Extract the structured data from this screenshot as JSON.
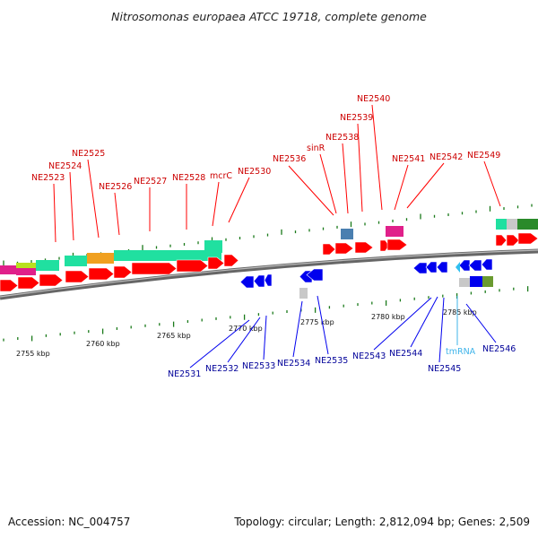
{
  "title": "Nitrosomonas europaea ATCC 19718, complete genome",
  "footer": {
    "accession": "Accession: NC_004757",
    "summary": "Topology: circular; Length: 2,812,094 bp; Genes: 2,509"
  },
  "colors": {
    "forward_gene": "#ff0000",
    "reverse_gene": "#0000ee",
    "forward_label": "#cc0000",
    "reverse_label": "#000099",
    "rna_label": "#3fb4ea",
    "backbone": "#888888",
    "tick_mark": "#1a7a1a",
    "feature_teal": "#20e0a0",
    "feature_orange": "#f0a020",
    "feature_magenta": "#e0208a",
    "feature_lime": "#b8e020",
    "feature_steel": "#4a7fb0",
    "feature_gray": "#c8c8c8",
    "feature_green": "#2a8a2a",
    "feature_olive": "#6a9a30",
    "feature_cyan": "#30c0f0"
  },
  "scale_labels": [
    "2755 kbp",
    "2760 kbp",
    "2765 kbp",
    "2770 kbp",
    "2775 kbp",
    "2780 kbp",
    "2785 kbp"
  ],
  "forward_labels": [
    "NE2523",
    "NE2524",
    "NE2525",
    "NE2526",
    "NE2527",
    "NE2528",
    "mcrC",
    "NE2530",
    "NE2536",
    "sinR",
    "NE2538",
    "NE2539",
    "NE2540",
    "NE2541",
    "NE2542",
    "NE2549"
  ],
  "reverse_labels": [
    "NE2531",
    "NE2532",
    "NE2533",
    "NE2534",
    "NE2535",
    "NE2543",
    "NE2544",
    "NE2545",
    "tmRNA",
    "NE2546"
  ]
}
